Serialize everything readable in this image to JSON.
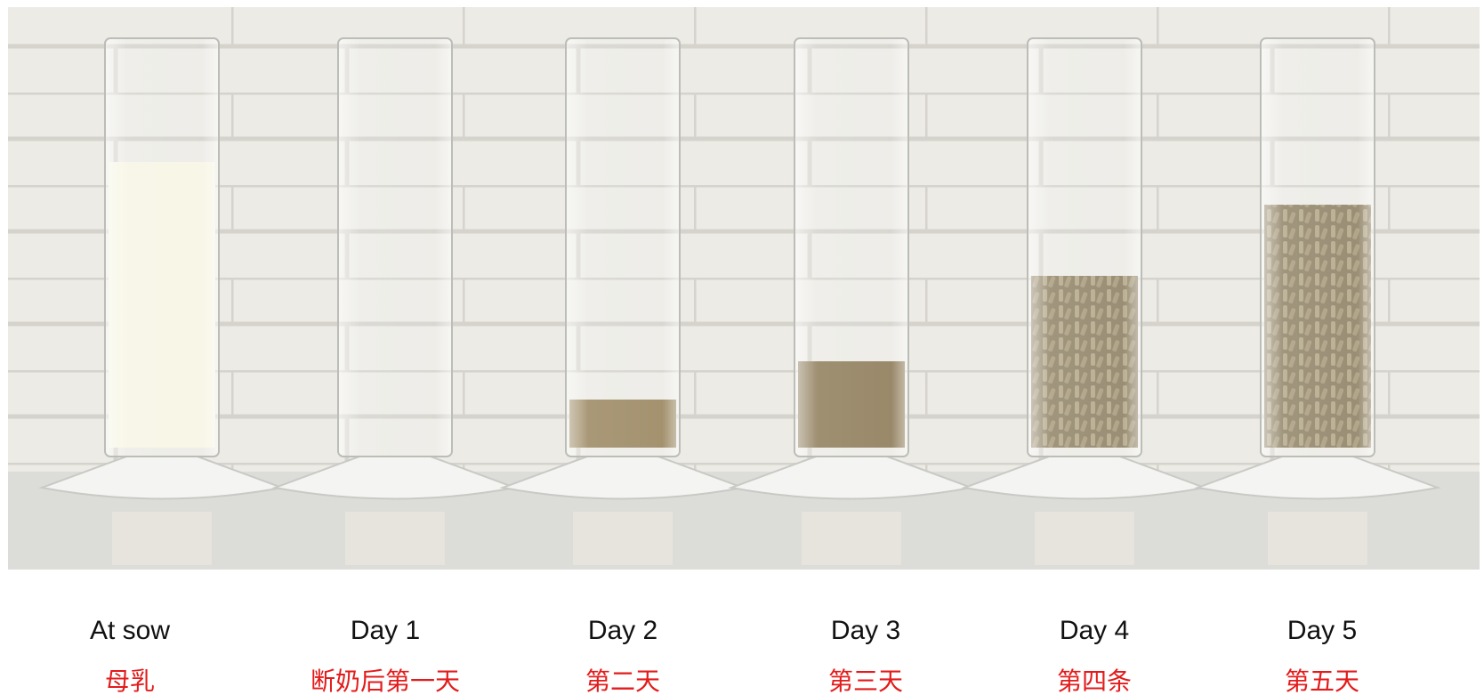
{
  "labels": [
    {
      "english": "At sow",
      "chinese": "母乳"
    },
    {
      "english": "Day 1",
      "chinese": "断奶后第一天"
    },
    {
      "english": "Day 2",
      "chinese": "第二天"
    },
    {
      "english": "Day 3",
      "chinese": "第三天"
    },
    {
      "english": "Day 4",
      "chinese": "第四条"
    },
    {
      "english": "Day 5",
      "chinese": "第五天"
    }
  ]
}
